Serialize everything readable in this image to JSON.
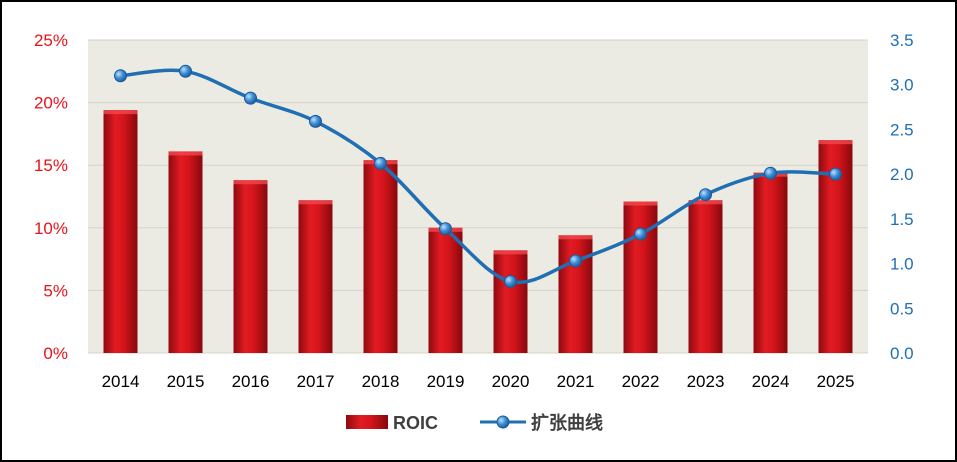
{
  "chart_data": {
    "type": "bar",
    "title": "",
    "categories": [
      "2014",
      "2015",
      "2016",
      "2017",
      "2018",
      "2019",
      "2020",
      "2021",
      "2022",
      "2023",
      "2024",
      "2025"
    ],
    "series": [
      {
        "name": "ROIC",
        "type": "bar",
        "axis": "left",
        "color": "#c8101a",
        "values": [
          19.4,
          16.1,
          13.8,
          12.2,
          15.4,
          10.0,
          8.2,
          9.4,
          12.1,
          12.2,
          14.4,
          17.0
        ]
      },
      {
        "name": "扩张曲线",
        "type": "line",
        "axis": "right",
        "color": "#1f6fb2",
        "values": [
          3.1,
          3.15,
          2.85,
          2.59,
          2.12,
          1.39,
          0.8,
          1.03,
          1.33,
          1.77,
          2.01,
          2.0
        ]
      }
    ],
    "y_left": {
      "min": 0,
      "max": 25,
      "step": 5,
      "tick_labels": [
        "0%",
        "5%",
        "10%",
        "15%",
        "20%",
        "25%"
      ],
      "label_color": "#ff0000"
    },
    "y_right": {
      "min": 0,
      "max": 3.5,
      "step": 0.5,
      "tick_labels": [
        "0.0",
        "0.5",
        "1.0",
        "1.5",
        "2.0",
        "2.5",
        "3.0",
        "3.5"
      ],
      "label_color": "#1f6fb2"
    },
    "plot_background": "#ecebe3",
    "grid": true,
    "legend_position": "bottom"
  }
}
